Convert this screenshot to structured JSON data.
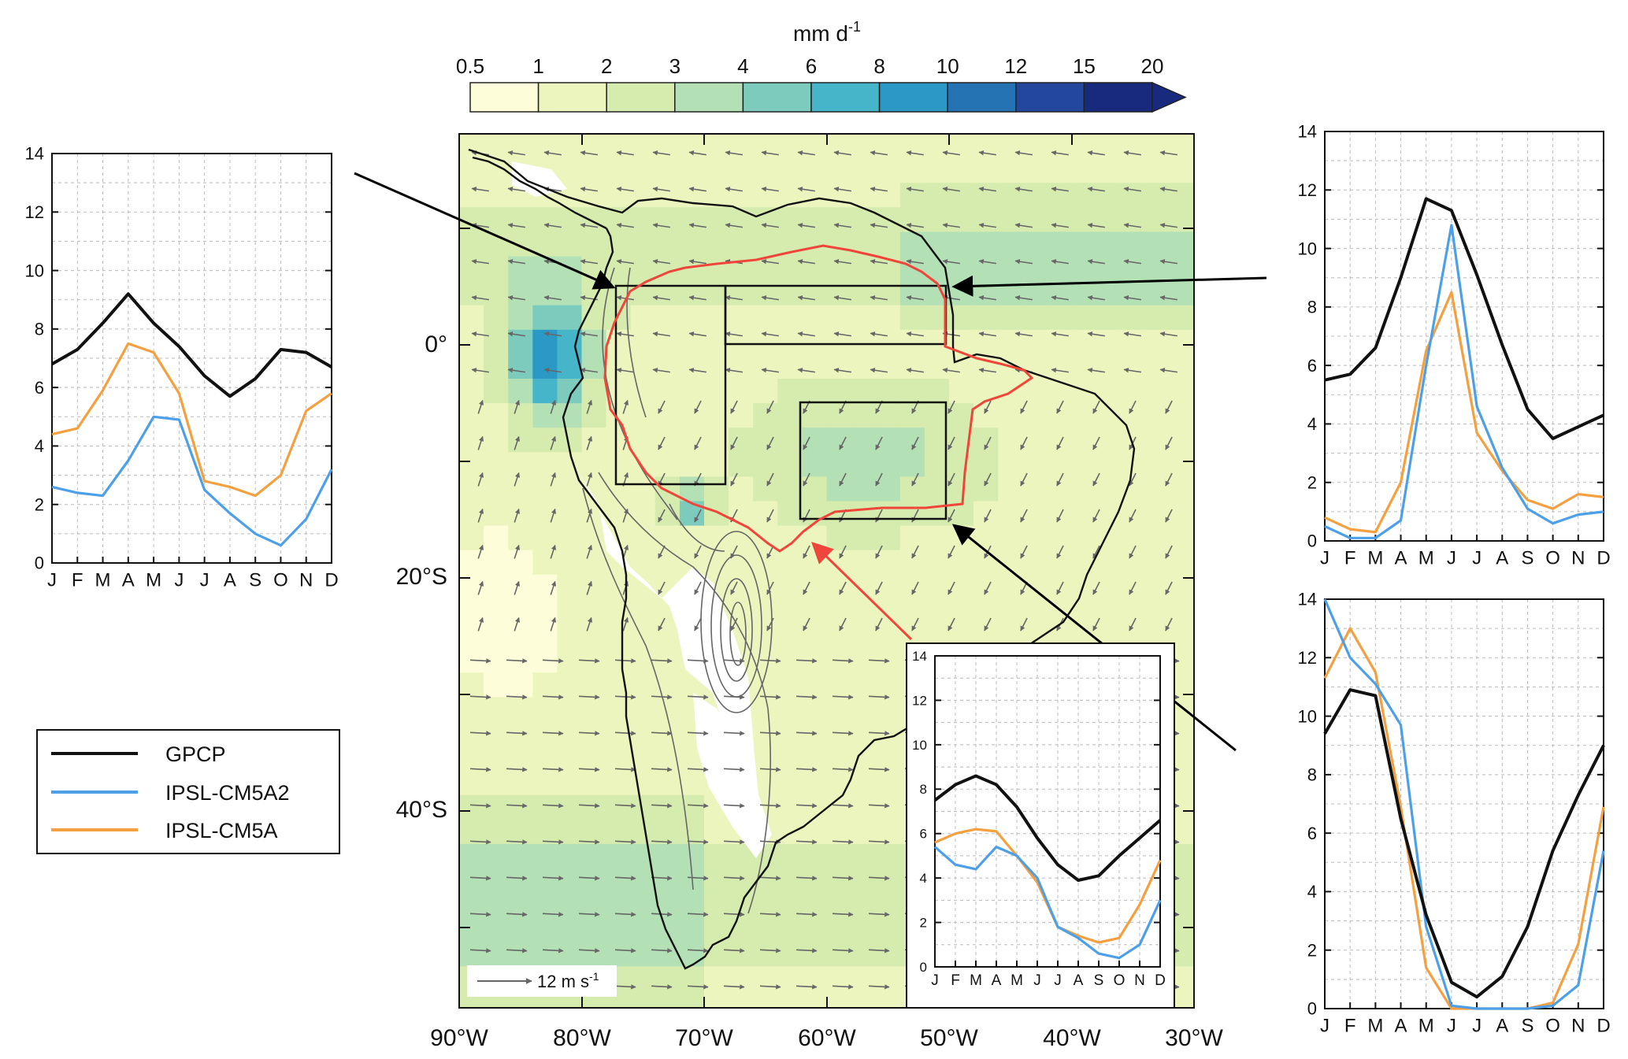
{
  "colorbar": {
    "unit_label": "mm d",
    "unit_exponent": "-1",
    "tick_labels": [
      "0.5",
      "1",
      "2",
      "3",
      "4",
      "6",
      "8",
      "10",
      "12",
      "15",
      "20"
    ],
    "colors": [
      "#fdfed9",
      "#edf5bf",
      "#d6ecaf",
      "#b3e0b5",
      "#7ccbbd",
      "#47b5c9",
      "#2a99c6",
      "#2673b3",
      "#22479c",
      "#182a7d"
    ]
  },
  "map": {
    "lon_labels": [
      "90°W",
      "80°W",
      "70°W",
      "60°W",
      "50°W",
      "40°W",
      "30°W"
    ],
    "lat_labels": [
      "0°",
      "20°S",
      "40°S"
    ],
    "vector_scale_label": "12 m s",
    "vector_scale_exponent": "-1"
  },
  "legend": {
    "entries": [
      "GPCP",
      "IPSL-CM5A2",
      "IPSL-CM5A"
    ]
  },
  "chart_data": [
    {
      "type": "line",
      "panel": "left-top (western box)",
      "x": [
        "J",
        "F",
        "M",
        "A",
        "M",
        "J",
        "J",
        "A",
        "S",
        "O",
        "N",
        "D"
      ],
      "yticks": [
        "0",
        "2",
        "4",
        "6",
        "8",
        "10",
        "12",
        "14"
      ],
      "ylim": [
        0,
        14
      ],
      "grid": true,
      "series": [
        {
          "name": "GPCP",
          "color": "#111111",
          "values": [
            6.8,
            7.3,
            8.2,
            9.2,
            8.2,
            7.4,
            6.4,
            5.7,
            6.3,
            7.3,
            7.2,
            6.7
          ]
        },
        {
          "name": "IPSL-CM5A2",
          "color": "#4da0e8",
          "values": [
            2.6,
            2.4,
            2.3,
            3.5,
            5.0,
            4.9,
            2.5,
            1.7,
            1.0,
            0.6,
            1.5,
            3.2
          ]
        },
        {
          "name": "IPSL-CM5A",
          "color": "#f5a040",
          "values": [
            4.4,
            4.6,
            5.9,
            7.5,
            7.2,
            5.8,
            2.8,
            2.6,
            2.3,
            3.0,
            5.2,
            5.8
          ]
        }
      ]
    },
    {
      "type": "line",
      "panel": "right-top (northern box)",
      "x": [
        "J",
        "F",
        "M",
        "A",
        "M",
        "J",
        "J",
        "A",
        "S",
        "O",
        "N",
        "D"
      ],
      "yticks": [
        "0",
        "2",
        "4",
        "6",
        "8",
        "10",
        "12",
        "14"
      ],
      "ylim": [
        0,
        14
      ],
      "grid": true,
      "series": [
        {
          "name": "GPCP",
          "color": "#111111",
          "values": [
            5.5,
            5.7,
            6.6,
            9.0,
            11.7,
            11.3,
            9.1,
            6.7,
            4.5,
            3.5,
            3.9,
            4.3
          ]
        },
        {
          "name": "IPSL-CM5A2",
          "color": "#4da0e8",
          "values": [
            0.5,
            0.1,
            0.1,
            0.7,
            6.0,
            10.8,
            4.6,
            2.5,
            1.1,
            0.6,
            0.9,
            1.0
          ]
        },
        {
          "name": "IPSL-CM5A",
          "color": "#f5a040",
          "values": [
            0.8,
            0.4,
            0.3,
            2.0,
            6.5,
            8.5,
            3.7,
            2.4,
            1.4,
            1.1,
            1.6,
            1.5
          ]
        }
      ]
    },
    {
      "type": "line",
      "panel": "inset (southern box)",
      "x": [
        "J",
        "F",
        "M",
        "A",
        "M",
        "J",
        "J",
        "A",
        "S",
        "O",
        "N",
        "D"
      ],
      "yticks": [
        "0",
        "2",
        "4",
        "6",
        "8",
        "10",
        "12",
        "14"
      ],
      "ylim": [
        0,
        14
      ],
      "grid": true,
      "series": [
        {
          "name": "GPCP",
          "color": "#111111",
          "values": [
            7.5,
            8.2,
            8.6,
            8.2,
            7.2,
            5.8,
            4.6,
            3.9,
            4.1,
            5.0,
            5.8,
            6.6
          ]
        },
        {
          "name": "IPSL-CM5A2",
          "color": "#4da0e8",
          "values": [
            5.4,
            4.6,
            4.4,
            5.4,
            5.0,
            4.0,
            1.8,
            1.3,
            0.6,
            0.4,
            1.0,
            3.0
          ]
        },
        {
          "name": "IPSL-CM5A",
          "color": "#f5a040",
          "values": [
            5.6,
            6.0,
            6.2,
            6.1,
            5.0,
            3.8,
            1.8,
            1.4,
            1.1,
            1.3,
            2.8,
            4.8
          ]
        }
      ]
    },
    {
      "type": "line",
      "panel": "right-bottom (southern box, south)",
      "x": [
        "J",
        "F",
        "M",
        "A",
        "M",
        "J",
        "J",
        "A",
        "S",
        "O",
        "N",
        "D"
      ],
      "yticks": [
        "0",
        "2",
        "4",
        "6",
        "8",
        "10",
        "12",
        "14"
      ],
      "ylim": [
        0,
        14
      ],
      "grid": true,
      "series": [
        {
          "name": "GPCP",
          "color": "#111111",
          "values": [
            9.4,
            10.9,
            10.7,
            6.5,
            3.2,
            0.9,
            0.4,
            1.1,
            2.8,
            5.4,
            7.3,
            9.0
          ]
        },
        {
          "name": "IPSL-CM5A2",
          "color": "#4da0e8",
          "values": [
            14.0,
            12.0,
            11.1,
            9.7,
            2.8,
            0.1,
            0.0,
            0.0,
            0.0,
            0.1,
            0.8,
            5.4
          ]
        },
        {
          "name": "IPSL-CM5A",
          "color": "#f5a040",
          "values": [
            11.3,
            13.0,
            11.5,
            6.9,
            1.4,
            0.0,
            0.0,
            0.0,
            0.0,
            0.2,
            2.2,
            6.9
          ]
        }
      ]
    }
  ]
}
